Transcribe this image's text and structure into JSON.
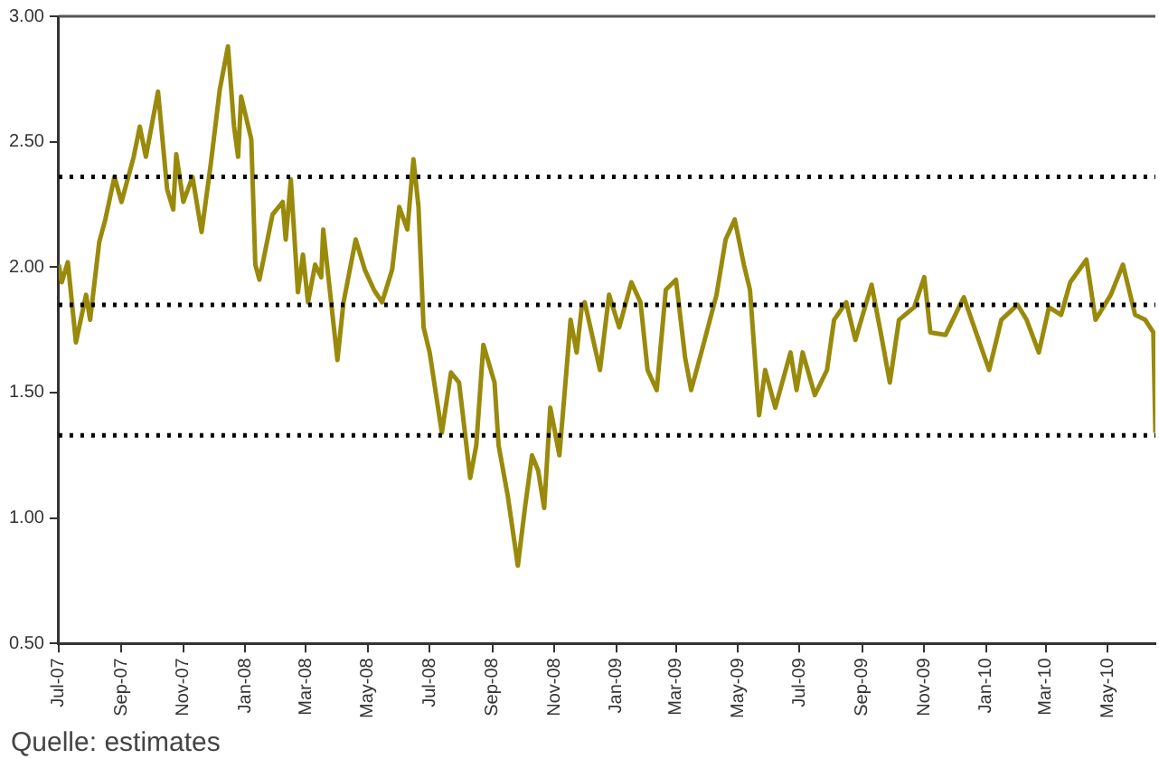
{
  "chart_data": {
    "type": "line",
    "x": [
      "2007-07-01",
      "2007-07-04",
      "2007-07-10",
      "2007-07-18",
      "2007-07-28",
      "2007-08-01",
      "2007-08-10",
      "2007-08-16",
      "2007-08-25",
      "2007-09-01",
      "2007-09-13",
      "2007-09-19",
      "2007-09-25",
      "2007-10-07",
      "2007-10-16",
      "2007-10-22",
      "2007-10-25",
      "2007-11-01",
      "2007-11-10",
      "2007-11-19",
      "2007-11-28",
      "2007-12-07",
      "2007-12-15",
      "2007-12-21",
      "2007-12-25",
      "2007-12-28",
      "2008-01-07",
      "2008-01-11",
      "2008-01-15",
      "2008-01-28",
      "2008-02-07",
      "2008-02-10",
      "2008-02-15",
      "2008-02-22",
      "2008-02-27",
      "2008-03-03",
      "2008-03-10",
      "2008-03-16",
      "2008-03-18",
      "2008-04-01",
      "2008-04-07",
      "2008-04-19",
      "2008-04-28",
      "2008-05-07",
      "2008-05-15",
      "2008-05-25",
      "2008-06-01",
      "2008-06-09",
      "2008-06-15",
      "2008-06-20",
      "2008-06-25",
      "2008-07-01",
      "2008-07-13",
      "2008-07-22",
      "2008-07-30",
      "2008-08-10",
      "2008-08-16",
      "2008-08-23",
      "2008-09-03",
      "2008-09-07",
      "2008-09-16",
      "2008-09-26",
      "2008-10-03",
      "2008-10-10",
      "2008-10-16",
      "2008-10-22",
      "2008-10-28",
      "2008-11-06",
      "2008-11-13",
      "2008-11-17",
      "2008-11-23",
      "2008-11-28",
      "2008-12-01",
      "2008-12-16",
      "2008-12-25",
      "2009-01-04",
      "2009-01-16",
      "2009-01-25",
      "2009-02-01",
      "2009-02-10",
      "2009-02-19",
      "2009-03-01",
      "2009-03-10",
      "2009-03-16",
      "2009-03-28",
      "2009-04-10",
      "2009-04-19",
      "2009-04-28",
      "2009-05-07",
      "2009-05-13",
      "2009-05-22",
      "2009-05-28",
      "2009-06-07",
      "2009-06-22",
      "2009-06-28",
      "2009-07-04",
      "2009-07-16",
      "2009-07-28",
      "2009-08-04",
      "2009-08-16",
      "2009-08-25",
      "2009-09-10",
      "2009-09-19",
      "2009-09-28",
      "2009-10-07",
      "2009-10-22",
      "2009-11-01",
      "2009-11-07",
      "2009-11-22",
      "2009-12-10",
      "2009-12-22",
      "2010-01-04",
      "2010-01-16",
      "2010-02-01",
      "2010-02-10",
      "2010-02-22",
      "2010-03-04",
      "2010-03-16",
      "2010-03-25",
      "2010-04-10",
      "2010-04-19",
      "2010-05-04",
      "2010-05-16",
      "2010-05-28",
      "2010-06-07",
      "2010-06-15",
      "2010-06-17"
    ],
    "series": [
      {
        "color": "#9a8a0c",
        "values": [
          2.01,
          1.94,
          2.02,
          1.7,
          1.89,
          1.79,
          2.1,
          2.19,
          2.36,
          2.26,
          2.44,
          2.56,
          2.44,
          2.7,
          2.31,
          2.23,
          2.45,
          2.26,
          2.36,
          2.14,
          2.41,
          2.71,
          2.88,
          2.56,
          2.44,
          2.68,
          2.51,
          2.01,
          1.95,
          2.21,
          2.26,
          2.11,
          2.35,
          1.9,
          2.05,
          1.86,
          2.01,
          1.96,
          2.15,
          1.63,
          1.86,
          2.11,
          1.99,
          1.91,
          1.86,
          1.99,
          2.24,
          2.15,
          2.43,
          2.24,
          1.76,
          1.66,
          1.34,
          1.58,
          1.54,
          1.16,
          1.29,
          1.69,
          1.54,
          1.29,
          1.09,
          0.81,
          1.04,
          1.25,
          1.19,
          1.04,
          1.44,
          1.25,
          1.59,
          1.79,
          1.66,
          1.84,
          1.86,
          1.59,
          1.89,
          1.76,
          1.94,
          1.86,
          1.59,
          1.51,
          1.91,
          1.95,
          1.64,
          1.51,
          1.69,
          1.89,
          2.11,
          2.19,
          2.01,
          1.91,
          1.41,
          1.59,
          1.44,
          1.66,
          1.51,
          1.66,
          1.49,
          1.59,
          1.79,
          1.86,
          1.71,
          1.93,
          1.74,
          1.54,
          1.79,
          1.84,
          1.96,
          1.74,
          1.73,
          1.88,
          1.74,
          1.59,
          1.79,
          1.85,
          1.79,
          1.66,
          1.84,
          1.81,
          1.94,
          2.03,
          1.79,
          1.89,
          2.01,
          1.81,
          1.79,
          1.74,
          1.34
        ]
      }
    ],
    "xlim": [
      "2007-07-01",
      "2010-06-17"
    ],
    "xticks": [
      {
        "value": "2007-07-01",
        "label": "Jul-07"
      },
      {
        "value": "2007-09-01",
        "label": "Sep-07"
      },
      {
        "value": "2007-11-01",
        "label": "Nov-07"
      },
      {
        "value": "2008-01-01",
        "label": "Jan-08"
      },
      {
        "value": "2008-03-01",
        "label": "Mar-08"
      },
      {
        "value": "2008-05-01",
        "label": "May-08"
      },
      {
        "value": "2008-07-01",
        "label": "Jul-08"
      },
      {
        "value": "2008-09-01",
        "label": "Sep-08"
      },
      {
        "value": "2008-11-01",
        "label": "Nov-08"
      },
      {
        "value": "2009-01-01",
        "label": "Jan-09"
      },
      {
        "value": "2009-03-01",
        "label": "Mar-09"
      },
      {
        "value": "2009-05-01",
        "label": "May-09"
      },
      {
        "value": "2009-07-01",
        "label": "Jul-09"
      },
      {
        "value": "2009-09-01",
        "label": "Sep-09"
      },
      {
        "value": "2009-11-01",
        "label": "Nov-09"
      },
      {
        "value": "2010-01-01",
        "label": "Jan-10"
      },
      {
        "value": "2010-03-01",
        "label": "Mar-10"
      },
      {
        "value": "2010-05-01",
        "label": "May-10"
      }
    ],
    "ylim": [
      0.5,
      3.0
    ],
    "yticks": [
      {
        "value": 0.5,
        "label": "0.50"
      },
      {
        "value": 1.0,
        "label": "1.00"
      },
      {
        "value": 1.5,
        "label": "1.50"
      },
      {
        "value": 2.0,
        "label": "2.00"
      },
      {
        "value": 2.5,
        "label": "2.50"
      },
      {
        "value": 3.0,
        "label": "3.00"
      }
    ],
    "ref_lines": [
      {
        "axis": "y",
        "value": 2.36,
        "color": "#000000",
        "line_style": "dotted"
      },
      {
        "axis": "y",
        "value": 1.85,
        "color": "#000000",
        "line_style": "dotted"
      },
      {
        "axis": "y",
        "value": 1.33,
        "color": "#000000",
        "line_style": "dotted"
      }
    ],
    "grid": false,
    "legend": false,
    "marker": "none",
    "line_style": "solid",
    "annotations": [
      "Quelle: estimates"
    ]
  }
}
